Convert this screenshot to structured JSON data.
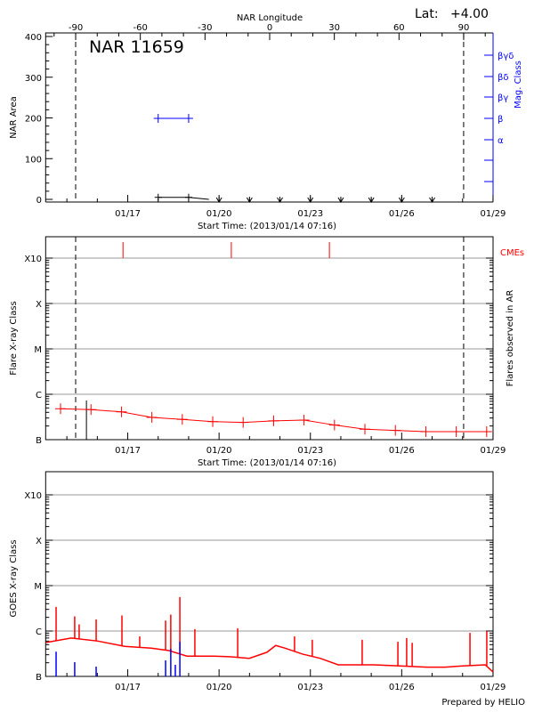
{
  "header": {
    "lat_label": "Lat:",
    "lat_value": "+4.00"
  },
  "footer": {
    "prepared_by": "Prepared by HELIO"
  },
  "colors": {
    "axis": "#000000",
    "grid": "#999999",
    "flare": "#ff0000",
    "cme": "#ff0000",
    "mag_class": "#0000ff",
    "goes_long": "#ff0000",
    "goes_short": "#0000ff"
  },
  "chart_data": [
    {
      "type": "line",
      "title": "NAR 11659",
      "xlabel": "Start Time: (2013/01/14 07:16)",
      "x_start": "2013-01-14T07:16",
      "x_end": "2013-01-29T00:00",
      "xticks": [
        "01/17",
        "01/20",
        "01/23",
        "01/26",
        "01/29"
      ],
      "top_xlabel": "NAR Longitude",
      "top_xticks": [
        -90,
        -60,
        -30,
        0,
        30,
        60,
        90
      ],
      "ylabel": "NAR Area",
      "ylim": [
        0,
        400
      ],
      "yticks": [
        0,
        100,
        200,
        300,
        400
      ],
      "y2label": "Mag. Class",
      "y2ticks": [
        "",
        "",
        "α",
        "β",
        "βγ",
        "βδ",
        "βγδ"
      ],
      "limb_lines": [
        "2013-01-15T06:55",
        "2013-01-28T00:50"
      ],
      "area_series": [
        {
          "x": "2013-01-18T00:00",
          "y": 5
        },
        {
          "x": "2013-01-19T00:00",
          "y": 5
        },
        {
          "x": "2013-01-19T16:00",
          "y": 0
        }
      ],
      "area_upper_limits": [
        "2013-01-20T00:00",
        "2013-01-21T00:00",
        "2013-01-22T00:00",
        "2013-01-23T00:00",
        "2013-01-24T00:00",
        "2013-01-25T00:00",
        "2013-01-26T00:00",
        "2013-01-27T00:00"
      ],
      "mag_class_series": [
        {
          "x": "2013-01-18T00:00",
          "class": "β"
        },
        {
          "x": "2013-01-19T00:00",
          "class": "β"
        }
      ]
    },
    {
      "type": "line",
      "xlabel": "Start Time: (2013/01/14 07:16)",
      "xticks": [
        "01/17",
        "01/20",
        "01/23",
        "01/26",
        "01/29"
      ],
      "ylabel": "Flare X-ray Class",
      "y2label": "Flares observed in AR",
      "yscale": "log",
      "ylim": [
        1e-07,
        0.001
      ],
      "yticks": [
        {
          "label": "B",
          "value": 1e-07
        },
        {
          "label": "C",
          "value": 1e-06
        },
        {
          "label": "M",
          "value": 1e-05
        },
        {
          "label": "X",
          "value": 0.0001
        },
        {
          "label": "X10",
          "value": 0.001
        }
      ],
      "grid": true,
      "limb_lines": [
        "2013-01-15T06:55",
        "2013-01-28T00:50"
      ],
      "cme_label": "CMEs",
      "cmes": [
        "2013-01-16T20:15",
        "2013-01-20T09:40",
        "2013-01-23T15:00"
      ],
      "flares_observed": [
        {
          "x": "2013-01-15T15:25",
          "y": 7.3e-07
        }
      ],
      "series": [
        {
          "x": "2013-01-14T19:00",
          "y": 4.8e-07
        },
        {
          "x": "2013-01-15T19:00",
          "y": 4.6e-07
        },
        {
          "x": "2013-01-16T19:00",
          "y": 4.1e-07
        },
        {
          "x": "2013-01-17T19:00",
          "y": 3.1e-07
        },
        {
          "x": "2013-01-18T19:00",
          "y": 2.8e-07
        },
        {
          "x": "2013-01-19T19:00",
          "y": 2.5e-07
        },
        {
          "x": "2013-01-20T19:00",
          "y": 2.4e-07
        },
        {
          "x": "2013-01-21T19:00",
          "y": 2.6e-07
        },
        {
          "x": "2013-01-22T19:00",
          "y": 2.7e-07
        },
        {
          "x": "2013-01-23T19:00",
          "y": 2.1e-07
        },
        {
          "x": "2013-01-24T19:00",
          "y": 1.7e-07
        },
        {
          "x": "2013-01-25T19:00",
          "y": 1.6e-07
        },
        {
          "x": "2013-01-26T19:00",
          "y": 1.5e-07
        },
        {
          "x": "2013-01-27T19:00",
          "y": 1.5e-07
        },
        {
          "x": "2013-01-28T19:00",
          "y": 1.5e-07
        }
      ]
    },
    {
      "type": "line",
      "xticks": [
        "01/17",
        "01/20",
        "01/23",
        "01/26",
        "01/29"
      ],
      "ylabel": "GOES X-ray Class",
      "yscale": "log",
      "ylim": [
        1e-07,
        0.001
      ],
      "yticks": [
        {
          "label": "B",
          "value": 1e-07
        },
        {
          "label": "C",
          "value": 1e-06
        },
        {
          "label": "M",
          "value": 1e-05
        },
        {
          "label": "X",
          "value": 0.0001
        },
        {
          "label": "X10",
          "value": 0.001
        }
      ],
      "grid": true,
      "long_channel_baseline": [
        {
          "x": "2013-01-14T07:45",
          "y": 5.6e-07
        },
        {
          "x": "2013-01-15T03:25",
          "y": 7e-07
        },
        {
          "x": "2013-01-16T00:25",
          "y": 6e-07
        },
        {
          "x": "2013-01-16T21:30",
          "y": 4.6e-07
        },
        {
          "x": "2013-01-17T18:30",
          "y": 4.2e-07
        },
        {
          "x": "2013-01-18T08:30",
          "y": 3.7e-07
        },
        {
          "x": "2013-01-18T22:40",
          "y": 2.8e-07
        },
        {
          "x": "2013-01-19T19:45",
          "y": 2.8e-07
        },
        {
          "x": "2013-01-20T09:40",
          "y": 2.7e-07
        },
        {
          "x": "2013-01-20T23:50",
          "y": 2.5e-07
        },
        {
          "x": "2013-01-21T13:45",
          "y": 3.4e-07
        },
        {
          "x": "2013-01-21T20:40",
          "y": 4.8e-07
        },
        {
          "x": "2013-01-22T03:50",
          "y": 4.2e-07
        },
        {
          "x": "2013-01-22T17:50",
          "y": 3.1e-07
        },
        {
          "x": "2013-01-23T07:45",
          "y": 2.5e-07
        },
        {
          "x": "2013-01-23T21:55",
          "y": 1.8e-07
        },
        {
          "x": "2013-01-25T02:00",
          "y": 1.8e-07
        },
        {
          "x": "2013-01-25T23:05",
          "y": 1.7e-07
        },
        {
          "x": "2013-01-26T20:00",
          "y": 1.6e-07
        },
        {
          "x": "2013-01-27T10:10",
          "y": 1.6e-07
        },
        {
          "x": "2013-01-28T00:05",
          "y": 1.7e-07
        },
        {
          "x": "2013-01-28T17:50",
          "y": 1.8e-07
        },
        {
          "x": "2013-01-29T00:00",
          "y": 1.25e-07
        }
      ],
      "long_channel_peaks": [
        {
          "x": "2013-01-14T15:30",
          "y": 3.4e-06
        },
        {
          "x": "2013-01-15T06:10",
          "y": 2.1e-06
        },
        {
          "x": "2013-01-15T09:40",
          "y": 1.4e-06
        },
        {
          "x": "2013-01-15T23:05",
          "y": 1.8e-06
        },
        {
          "x": "2013-01-16T19:25",
          "y": 2.2e-06
        },
        {
          "x": "2013-01-17T09:25",
          "y": 7.6e-07
        },
        {
          "x": "2013-01-18T05:50",
          "y": 1.7e-06
        },
        {
          "x": "2013-01-18T09:55",
          "y": 2.3e-06
        },
        {
          "x": "2013-01-18T17:05",
          "y": 5.6e-06
        },
        {
          "x": "2013-01-19T04:55",
          "y": 1.1e-06
        },
        {
          "x": "2013-01-20T14:40",
          "y": 1.15e-06
        },
        {
          "x": "2013-01-22T11:30",
          "y": 7.6e-07
        },
        {
          "x": "2013-01-23T01:30",
          "y": 6.4e-07
        },
        {
          "x": "2013-01-24T16:50",
          "y": 6.4e-07
        },
        {
          "x": "2013-01-25T21:00",
          "y": 5.8e-07
        },
        {
          "x": "2013-01-26T03:55",
          "y": 7e-07
        },
        {
          "x": "2013-01-26T08:15",
          "y": 5.5e-07
        },
        {
          "x": "2013-01-28T05:50",
          "y": 9.1e-07
        },
        {
          "x": "2013-01-28T19:05",
          "y": 1e-06
        }
      ],
      "short_channel": [
        {
          "x": "2013-01-14T15:30",
          "y": 3.5e-07
        },
        {
          "x": "2013-01-15T06:10",
          "y": 2.06e-07
        },
        {
          "x": "2013-01-15T23:05",
          "y": 1.64e-07
        },
        {
          "x": "2013-01-18T05:50",
          "y": 2.25e-07
        },
        {
          "x": "2013-01-18T09:55",
          "y": 4.05e-07
        },
        {
          "x": "2013-01-18T13:30",
          "y": 1.8e-07
        },
        {
          "x": "2013-01-18T17:05",
          "y": 5.8e-07
        }
      ]
    }
  ]
}
